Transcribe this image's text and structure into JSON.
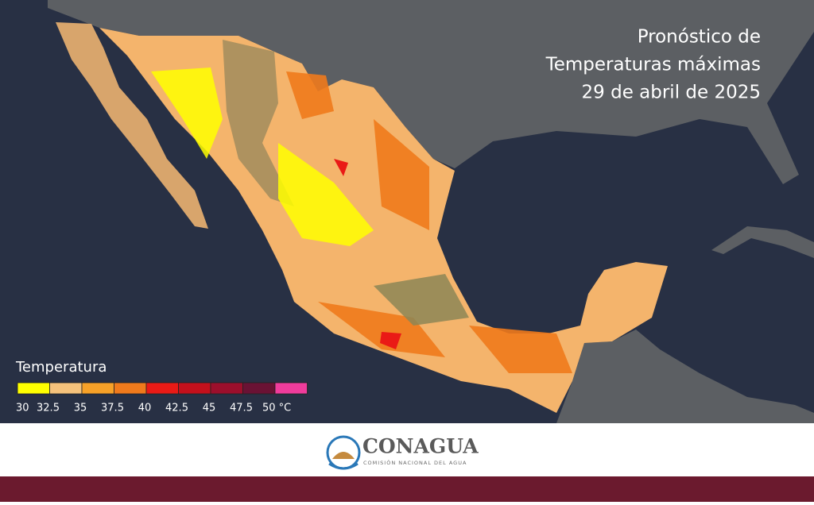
{
  "title": [
    "Pronóstico de",
    "Temperaturas máximas",
    "29 de abril de 2025"
  ],
  "legend": {
    "title": "Temperatura",
    "labels": [
      "30",
      "32.5",
      "35",
      "37.5",
      "40",
      "42.5",
      "45",
      "47.5",
      "50 °C"
    ],
    "colors": [
      "#ffff00",
      "#f5c27c",
      "#f7a128",
      "#f07a1c",
      "#ea1a16",
      "#c4101c",
      "#9c0f2c",
      "#6a1234",
      "#f03c9c"
    ]
  },
  "logo": {
    "name": "CONAGUA",
    "subtitle": "COMISIÓN NACIONAL DEL AGUA"
  }
}
